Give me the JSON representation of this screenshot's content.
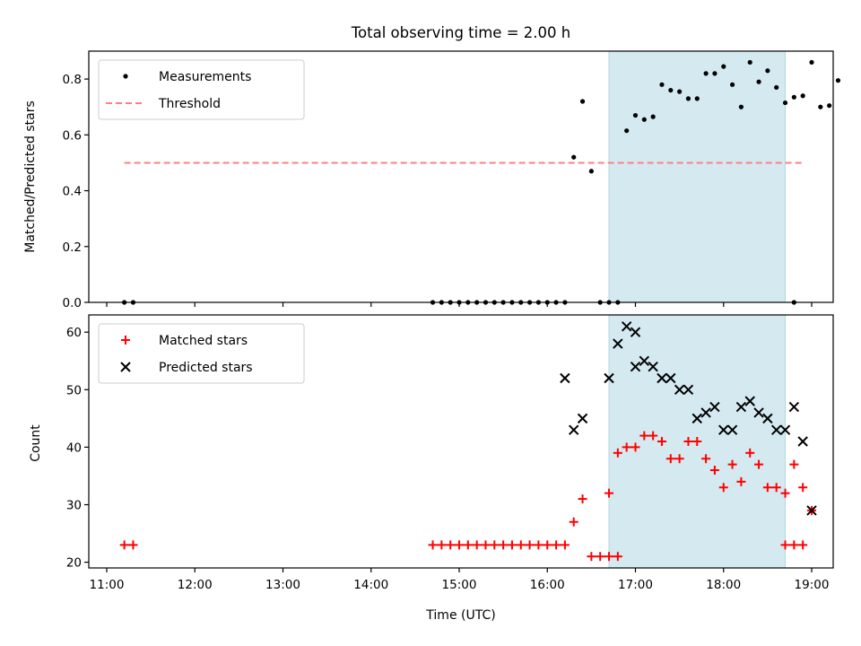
{
  "chart_data": [
    {
      "type": "scatter",
      "title": "Total observing time = 2.00 h",
      "xlabel": "",
      "ylabel": "Matched/Predicted stars",
      "xlim": [
        "11:00",
        "19:00"
      ],
      "ylim": [
        0,
        0.9
      ],
      "yticks": [
        "0.0",
        "0.2",
        "0.4",
        "0.6",
        "0.8"
      ],
      "highlight_span": {
        "start": "16:42",
        "end": "18:42",
        "color": "#d4eaf0"
      },
      "legend": {
        "placement": "upper-left",
        "entries": [
          "Measurements",
          "Threshold"
        ]
      },
      "threshold": {
        "name": "Threshold",
        "value": 0.5,
        "x_start": "11:12",
        "x_end": "18:54",
        "color": "#ff7f7f",
        "style": "dashed"
      },
      "series": [
        {
          "name": "Measurements",
          "color": "#000000",
          "marker": "dot",
          "points": [
            [
              "11:12",
              0.0
            ],
            [
              "11:18",
              0.0
            ],
            [
              "14:42",
              0.0
            ],
            [
              "14:48",
              0.0
            ],
            [
              "14:54",
              0.0
            ],
            [
              "15:00",
              0.0
            ],
            [
              "15:06",
              0.0
            ],
            [
              "15:12",
              0.0
            ],
            [
              "15:18",
              0.0
            ],
            [
              "15:24",
              0.0
            ],
            [
              "15:30",
              0.0
            ],
            [
              "15:36",
              0.0
            ],
            [
              "15:42",
              0.0
            ],
            [
              "15:48",
              0.0
            ],
            [
              "15:54",
              0.0
            ],
            [
              "16:00",
              0.0
            ],
            [
              "16:06",
              0.0
            ],
            [
              "16:12",
              0.0
            ],
            [
              "16:18",
              0.52
            ],
            [
              "16:24",
              0.72
            ],
            [
              "16:30",
              0.47
            ],
            [
              "16:36",
              0.0
            ],
            [
              "16:42",
              0.0
            ],
            [
              "16:48",
              0.0
            ],
            [
              "16:54",
              0.615
            ],
            [
              "17:00",
              0.67
            ],
            [
              "17:06",
              0.655
            ],
            [
              "17:12",
              0.665
            ],
            [
              "17:18",
              0.78
            ],
            [
              "17:24",
              0.76
            ],
            [
              "17:30",
              0.755
            ],
            [
              "17:36",
              0.73
            ],
            [
              "17:42",
              0.73
            ],
            [
              "17:48",
              0.82
            ],
            [
              "17:54",
              0.82
            ],
            [
              "18:00",
              0.845
            ],
            [
              "18:06",
              0.78
            ],
            [
              "18:12",
              0.7
            ],
            [
              "18:18",
              0.86
            ],
            [
              "18:24",
              0.79
            ],
            [
              "18:30",
              0.83
            ],
            [
              "18:36",
              0.77
            ],
            [
              "18:42",
              0.715
            ],
            [
              "18:48",
              0.735
            ],
            [
              "18:54",
              0.74
            ],
            [
              "19:00",
              0.86
            ],
            [
              "19:06",
              0.7
            ],
            [
              "19:12",
              0.705
            ],
            [
              "19:18",
              0.795
            ],
            [
              "18:48b",
              0.0
            ]
          ]
        }
      ],
      "xticks": [
        "11:00",
        "12:00",
        "13:00",
        "14:00",
        "15:00",
        "16:00",
        "17:00",
        "18:00",
        "19:00"
      ]
    },
    {
      "type": "scatter",
      "title": "",
      "xlabel": "Time (UTC)",
      "ylabel": "Count",
      "xlim": [
        "11:00",
        "19:00"
      ],
      "ylim": [
        19,
        63
      ],
      "yticks": [
        "20",
        "30",
        "40",
        "50",
        "60"
      ],
      "xticks": [
        "11:00",
        "12:00",
        "13:00",
        "14:00",
        "15:00",
        "16:00",
        "17:00",
        "18:00",
        "19:00"
      ],
      "highlight_span": {
        "start": "16:42",
        "end": "18:42",
        "color": "#d4eaf0"
      },
      "legend": {
        "placement": "upper-left",
        "entries": [
          "Matched stars",
          "Predicted stars"
        ]
      },
      "series": [
        {
          "name": "Matched stars",
          "color": "#ff0000",
          "marker": "plus",
          "points": [
            [
              "11:12",
              23
            ],
            [
              "11:18",
              23
            ],
            [
              "14:42",
              23
            ],
            [
              "14:48",
              23
            ],
            [
              "14:54",
              23
            ],
            [
              "15:00",
              23
            ],
            [
              "15:06",
              23
            ],
            [
              "15:12",
              23
            ],
            [
              "15:18",
              23
            ],
            [
              "15:24",
              23
            ],
            [
              "15:30",
              23
            ],
            [
              "15:36",
              23
            ],
            [
              "15:42",
              23
            ],
            [
              "15:48",
              23
            ],
            [
              "15:54",
              23
            ],
            [
              "16:00",
              23
            ],
            [
              "16:06",
              23
            ],
            [
              "16:12",
              23
            ],
            [
              "16:18",
              27
            ],
            [
              "16:24",
              31
            ],
            [
              "16:30",
              21
            ],
            [
              "16:36",
              21
            ],
            [
              "16:42",
              21
            ],
            [
              "16:48",
              21
            ],
            [
              "16:42",
              32
            ],
            [
              "16:48",
              39
            ],
            [
              "16:54",
              40
            ],
            [
              "17:00",
              40
            ],
            [
              "17:06",
              42
            ],
            [
              "17:12",
              42
            ],
            [
              "17:18",
              41
            ],
            [
              "17:24",
              38
            ],
            [
              "17:30",
              38
            ],
            [
              "17:36",
              41
            ],
            [
              "17:42",
              41
            ],
            [
              "17:48",
              38
            ],
            [
              "17:54",
              36
            ],
            [
              "18:00",
              33
            ],
            [
              "18:06",
              37
            ],
            [
              "18:12",
              34
            ],
            [
              "18:18",
              39
            ],
            [
              "18:24",
              37
            ],
            [
              "18:30",
              33
            ],
            [
              "18:36",
              33
            ],
            [
              "18:42",
              32
            ],
            [
              "18:48",
              37
            ],
            [
              "18:54",
              33
            ],
            [
              "19:00",
              29
            ],
            [
              "18:42b",
              23
            ],
            [
              "18:48b",
              23
            ],
            [
              "18:54b",
              23
            ]
          ]
        },
        {
          "name": "Predicted stars",
          "color": "#000000",
          "marker": "x",
          "points": [
            [
              "16:12",
              52
            ],
            [
              "16:18",
              43
            ],
            [
              "16:24",
              45
            ],
            [
              "16:42",
              52
            ],
            [
              "16:48",
              58
            ],
            [
              "16:54",
              61
            ],
            [
              "17:00",
              60
            ],
            [
              "17:00b",
              54
            ],
            [
              "17:06",
              55
            ],
            [
              "17:12",
              54
            ],
            [
              "17:18",
              52
            ],
            [
              "17:24",
              52
            ],
            [
              "17:30",
              50
            ],
            [
              "17:36",
              50
            ],
            [
              "17:42",
              45
            ],
            [
              "17:48",
              46
            ],
            [
              "17:54",
              47
            ],
            [
              "18:00",
              43
            ],
            [
              "18:06",
              43
            ],
            [
              "18:12",
              47
            ],
            [
              "18:18",
              48
            ],
            [
              "18:24",
              46
            ],
            [
              "18:30",
              45
            ],
            [
              "18:36",
              43
            ],
            [
              "18:42",
              43
            ],
            [
              "18:48",
              47
            ],
            [
              "18:54",
              41
            ],
            [
              "19:00",
              29
            ]
          ]
        }
      ]
    }
  ]
}
